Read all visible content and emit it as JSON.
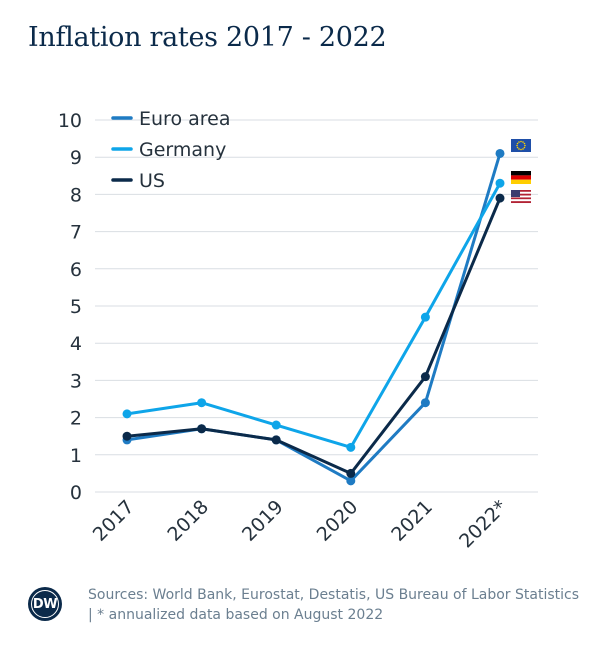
{
  "title": "Inflation rates 2017 - 2022",
  "footer": {
    "logo": "DW",
    "source": "Sources: World Bank, Eurostat, Destatis, US Bureau of Labor Statistics | * annualized data based on August 2022"
  },
  "chart_data": {
    "type": "line",
    "title": "Inflation rates 2017 - 2022",
    "xlabel": "",
    "ylabel": "",
    "categories": [
      "2017",
      "2018",
      "2019",
      "2020",
      "2021",
      "2022*"
    ],
    "ylim": [
      0,
      10
    ],
    "yticks": [
      "0",
      "1",
      "2",
      "3",
      "4",
      "5",
      "6",
      "7",
      "8",
      "9",
      "10"
    ],
    "grid": true,
    "legend_position": "top-left",
    "series": [
      {
        "name": "Euro area",
        "values": [
          1.4,
          1.7,
          1.4,
          0.3,
          2.4,
          9.1
        ],
        "color": "#1f7bc3",
        "flag": "eu-flag-icon"
      },
      {
        "name": "Germany",
        "values": [
          2.1,
          2.4,
          1.8,
          1.2,
          4.7,
          8.3
        ],
        "color": "#0ea5e9",
        "flag": "germany-flag-icon"
      },
      {
        "name": "US",
        "values": [
          1.5,
          1.7,
          1.4,
          0.5,
          3.1,
          7.9
        ],
        "color": "#0b2a4a",
        "flag": "us-flag-icon"
      }
    ]
  }
}
